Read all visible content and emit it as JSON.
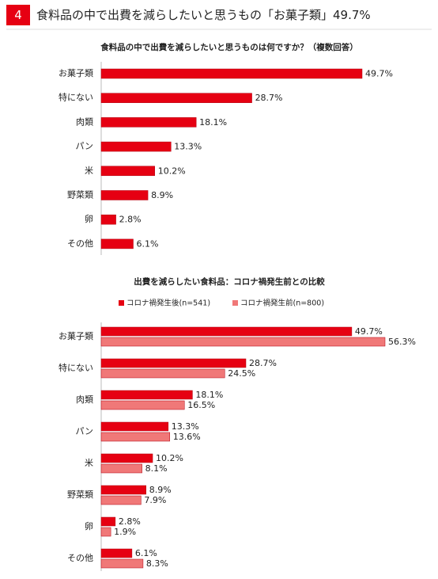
{
  "header": {
    "number": "4",
    "title": "食料品の中で出費を減らしたいと思うもの「お菓子類」49.7%"
  },
  "chart_data": [
    {
      "type": "bar",
      "orientation": "horizontal",
      "title": "食料品の中で出費を減らしたいと思うものは何ですか？（複数回答）",
      "categories": [
        "お菓子類",
        "特にない",
        "肉類",
        "パン",
        "米",
        "野菜類",
        "卵",
        "その他"
      ],
      "values": [
        49.7,
        28.7,
        18.1,
        13.3,
        10.2,
        8.9,
        2.8,
        6.1
      ],
      "value_labels": [
        "49.7%",
        "28.7%",
        "18.1%",
        "13.3%",
        "10.2%",
        "8.9%",
        "2.8%",
        "6.1%"
      ],
      "color": "#e60012"
    },
    {
      "type": "bar",
      "orientation": "horizontal",
      "title": "出費を減らしたい食料品：コロナ禍発生前との比較",
      "categories": [
        "お菓子類",
        "特にない",
        "肉類",
        "パン",
        "米",
        "野菜類",
        "卵",
        "その他"
      ],
      "series": [
        {
          "name": "コロナ禍発生後(n=541)",
          "color": "#e60012",
          "values": [
            49.7,
            28.7,
            18.1,
            13.3,
            10.2,
            8.9,
            2.8,
            6.1
          ],
          "value_labels": [
            "49.7%",
            "28.7%",
            "18.1%",
            "13.3%",
            "10.2%",
            "8.9%",
            "2.8%",
            "6.1%"
          ]
        },
        {
          "name": "コロナ禍発生前(n=800)",
          "color": "#f07878",
          "values": [
            56.3,
            24.5,
            16.5,
            13.6,
            8.1,
            7.9,
            1.9,
            8.3
          ],
          "value_labels": [
            "56.3%",
            "24.5%",
            "16.5%",
            "13.6%",
            "8.1%",
            "7.9%",
            "1.9%",
            "8.3%"
          ]
        }
      ]
    }
  ]
}
